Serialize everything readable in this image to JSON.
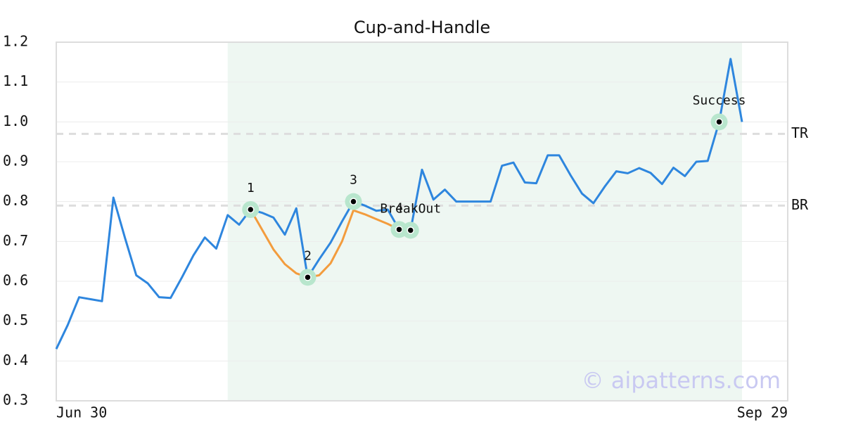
{
  "chart_data": {
    "type": "line",
    "title": "Cup-and-Handle",
    "watermark": "© aipatterns.com",
    "categories": [
      "Jun 30",
      null,
      null,
      null,
      null,
      null,
      null,
      null,
      null,
      null,
      null,
      null,
      null,
      null,
      null,
      null,
      null,
      null,
      null,
      null,
      null,
      null,
      null,
      null,
      null,
      null,
      null,
      null,
      null,
      null,
      null,
      null,
      null,
      null,
      null,
      null,
      null,
      null,
      null,
      null,
      null,
      null,
      null,
      null,
      null,
      null,
      null,
      null,
      null,
      null,
      null,
      null,
      null,
      null,
      null,
      null,
      null,
      null,
      null,
      null,
      "Sep 29"
    ],
    "series": [
      {
        "color": "#2e86de",
        "values": [
          0.43,
          0.49,
          0.56,
          0.555,
          0.55,
          0.81,
          0.71,
          0.615,
          0.595,
          0.56,
          0.558,
          0.61,
          0.665,
          0.71,
          0.682,
          0.766,
          0.742,
          0.78,
          0.772,
          0.76,
          0.717,
          0.783,
          0.61,
          0.655,
          0.697,
          0.75,
          0.8,
          0.79,
          0.777,
          0.78,
          0.73,
          0.728,
          0.88,
          0.805,
          0.83,
          0.8,
          0.8,
          0.8,
          0.8,
          0.89,
          0.898,
          0.848,
          0.846,
          0.916,
          0.916,
          0.866,
          0.82,
          0.796,
          0.838,
          0.876,
          0.871,
          0.884,
          0.872,
          0.844,
          0.885,
          0.864,
          0.9,
          0.902,
          1.0,
          1.158,
          1.0
        ]
      },
      {
        "color": "#f39c3d",
        "values": [
          null,
          null,
          null,
          null,
          null,
          null,
          null,
          null,
          null,
          null,
          null,
          null,
          null,
          null,
          null,
          null,
          null,
          0.78,
          0.73,
          0.68,
          0.643,
          0.62,
          0.61,
          0.615,
          0.645,
          0.7,
          0.778,
          0.768,
          0.756,
          0.744,
          0.73,
          null,
          null,
          null,
          null,
          null,
          null,
          null,
          null,
          null,
          null,
          null,
          null,
          null,
          null,
          null,
          null,
          null,
          null,
          null,
          null,
          null,
          null,
          null,
          null,
          null,
          null,
          null,
          null,
          null,
          null
        ]
      }
    ],
    "markers": [
      {
        "label": "1",
        "index": 17,
        "value": 0.78
      },
      {
        "label": "2",
        "index": 22,
        "value": 0.61
      },
      {
        "label": "3",
        "index": 26,
        "value": 0.8
      },
      {
        "label": "4",
        "index": 30,
        "value": 0.73
      },
      {
        "label": "BreakOut",
        "index": 31,
        "value": 0.728
      },
      {
        "label": "Success",
        "index": 58,
        "value": 1.0
      }
    ],
    "levels": [
      {
        "label": "TR",
        "value": 0.97
      },
      {
        "label": "BR",
        "value": 0.79
      }
    ],
    "highlight": [
      15,
      60
    ],
    "ylim": [
      0.3,
      1.2
    ],
    "yticks": [
      0.3,
      0.4,
      0.5,
      0.6,
      0.7,
      0.8,
      0.9,
      {
        "value": 1,
        "label": "1.0"
      },
      1.1,
      1.2
    ],
    "grid": true
  }
}
